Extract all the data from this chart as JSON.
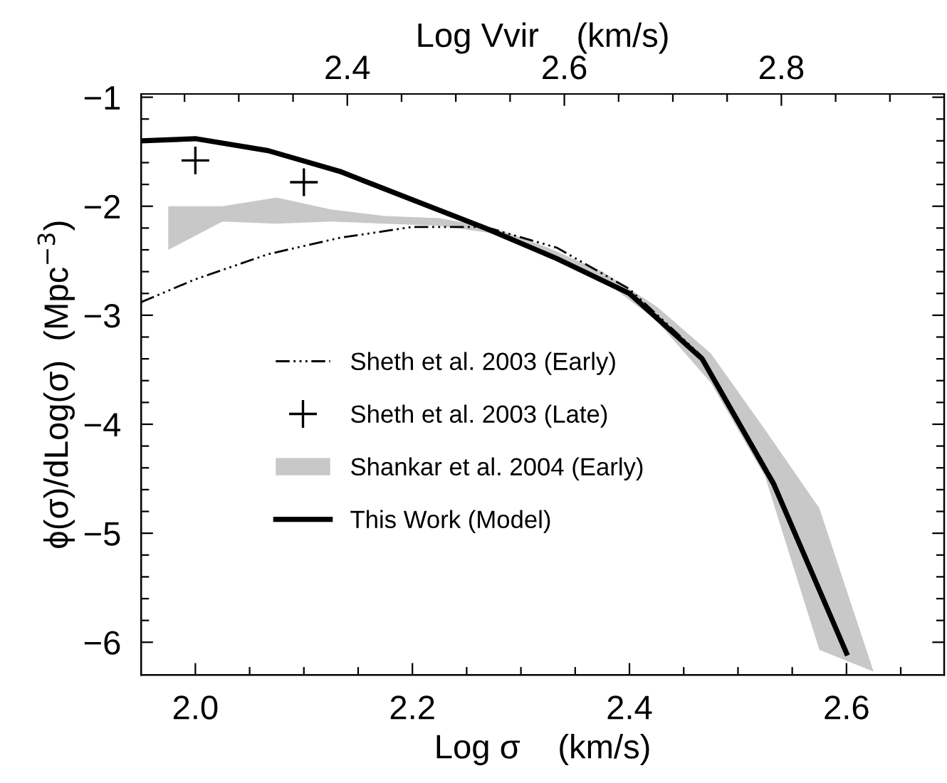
{
  "chart_data": {
    "type": "line",
    "xlabel": "Log σ    (km/s)",
    "ylabel": "ϕ(σ)/dLog(σ)  (Mpc$^{−3}$)",
    "x2label": "Log Vvir    (km/s)",
    "xlim": [
      1.95,
      2.69
    ],
    "xticks": [
      {
        "value": 2.0,
        "label": "2.0"
      },
      {
        "value": 2.05,
        "label": null
      },
      {
        "value": 2.1,
        "label": null
      },
      {
        "value": 2.15,
        "label": null
      },
      {
        "value": 2.2,
        "label": "2.2"
      },
      {
        "value": 2.25,
        "label": null
      },
      {
        "value": 2.3,
        "label": null
      },
      {
        "value": 2.35,
        "label": null
      },
      {
        "value": 2.4,
        "label": "2.4"
      },
      {
        "value": 2.45,
        "label": null
      },
      {
        "value": 2.5,
        "label": null
      },
      {
        "value": 2.55,
        "label": null
      },
      {
        "value": 2.6,
        "label": "2.6"
      },
      {
        "value": 2.65,
        "label": null
      }
    ],
    "x2lim": [
      2.21,
      2.95
    ],
    "x2ticks": [
      {
        "value": 2.25,
        "label": null
      },
      {
        "value": 2.3,
        "label": null
      },
      {
        "value": 2.35,
        "label": null
      },
      2.4,
      {
        "value": 2.45,
        "label": null
      },
      {
        "value": 2.5,
        "label": null
      },
      {
        "value": 2.55,
        "label": null
      },
      2.6,
      {
        "value": 2.65,
        "label": null
      },
      {
        "value": 2.7,
        "label": null
      },
      {
        "value": 2.75,
        "label": null
      },
      2.8,
      {
        "value": 2.85,
        "label": null
      },
      {
        "value": 2.9,
        "label": null
      }
    ],
    "ylim": [
      -6.3,
      -0.97
    ],
    "yticks": [
      -6,
      {
        "value": -5.8,
        "label": null
      },
      {
        "value": -5.6,
        "label": null
      },
      {
        "value": -5.4,
        "label": null
      },
      {
        "value": -5.2,
        "label": null
      },
      -5,
      {
        "value": -4.8,
        "label": null
      },
      {
        "value": -4.6,
        "label": null
      },
      {
        "value": -4.4,
        "label": null
      },
      {
        "value": -4.2,
        "label": null
      },
      -4,
      {
        "value": -3.8,
        "label": null
      },
      {
        "value": -3.6,
        "label": null
      },
      {
        "value": -3.4,
        "label": null
      },
      {
        "value": -3.2,
        "label": null
      },
      -3,
      {
        "value": -2.8,
        "label": null
      },
      {
        "value": -2.6,
        "label": null
      },
      {
        "value": -2.4,
        "label": null
      },
      {
        "value": -2.2,
        "label": null
      },
      -2,
      {
        "value": -1.8,
        "label": null
      },
      {
        "value": -1.6,
        "label": null
      },
      {
        "value": -1.4,
        "label": null
      },
      {
        "value": -1.2,
        "label": null
      },
      -1
    ],
    "legend": "left",
    "grid": false,
    "series": [
      {
        "name": "Sheth et al. 2003 (Early)",
        "line_style": "dashdotdot",
        "color": "#000000",
        "x": [
          1.95,
          2.0,
          2.067,
          2.133,
          2.2,
          2.267,
          2.333,
          2.4,
          2.467,
          2.533,
          2.6
        ],
        "values": [
          -2.88,
          -2.67,
          -2.44,
          -2.29,
          -2.19,
          -2.19,
          -2.38,
          -2.76,
          -3.38,
          -4.52,
          -6.1
        ]
      },
      {
        "name": "Sheth et al. 2003 (Late)",
        "type": "scatter",
        "marker": "cross",
        "color": "#000000",
        "x": [
          2.0,
          2.1
        ],
        "values": [
          -1.58,
          -1.78
        ]
      },
      {
        "name": "Shankar et al. 2004 (Early)",
        "type": "area",
        "color": "#c8c8c8",
        "x": [
          1.975,
          2.025,
          2.075,
          2.125,
          2.175,
          2.225,
          2.275,
          2.325,
          2.375,
          2.425,
          2.475,
          2.525,
          2.575,
          2.625
        ],
        "values": [
          null,
          null,
          null,
          null,
          null,
          null,
          null,
          null,
          null,
          null,
          null,
          null,
          null,
          null
        ],
        "lower": [
          -2.4,
          -2.14,
          -2.16,
          -2.14,
          -2.16,
          -2.18,
          -2.25,
          -2.45,
          -2.67,
          -3.05,
          -3.62,
          -4.48,
          -6.07,
          -6.27
        ],
        "upper": [
          -2.0,
          -2.0,
          -1.92,
          -2.03,
          -2.09,
          -2.11,
          -2.2,
          -2.38,
          -2.6,
          -2.92,
          -3.35,
          -4.05,
          -4.77,
          -6.27
        ]
      },
      {
        "name": "This Work (Model)",
        "line_style": "solid",
        "color": "#000000",
        "x": [
          1.95,
          2.0,
          2.067,
          2.133,
          2.2,
          2.267,
          2.333,
          2.4,
          2.467,
          2.533,
          2.6
        ],
        "values": [
          -1.4,
          -1.38,
          -1.49,
          -1.68,
          -1.94,
          -2.2,
          -2.48,
          -2.8,
          -3.4,
          -4.55,
          -6.1
        ]
      }
    ]
  }
}
